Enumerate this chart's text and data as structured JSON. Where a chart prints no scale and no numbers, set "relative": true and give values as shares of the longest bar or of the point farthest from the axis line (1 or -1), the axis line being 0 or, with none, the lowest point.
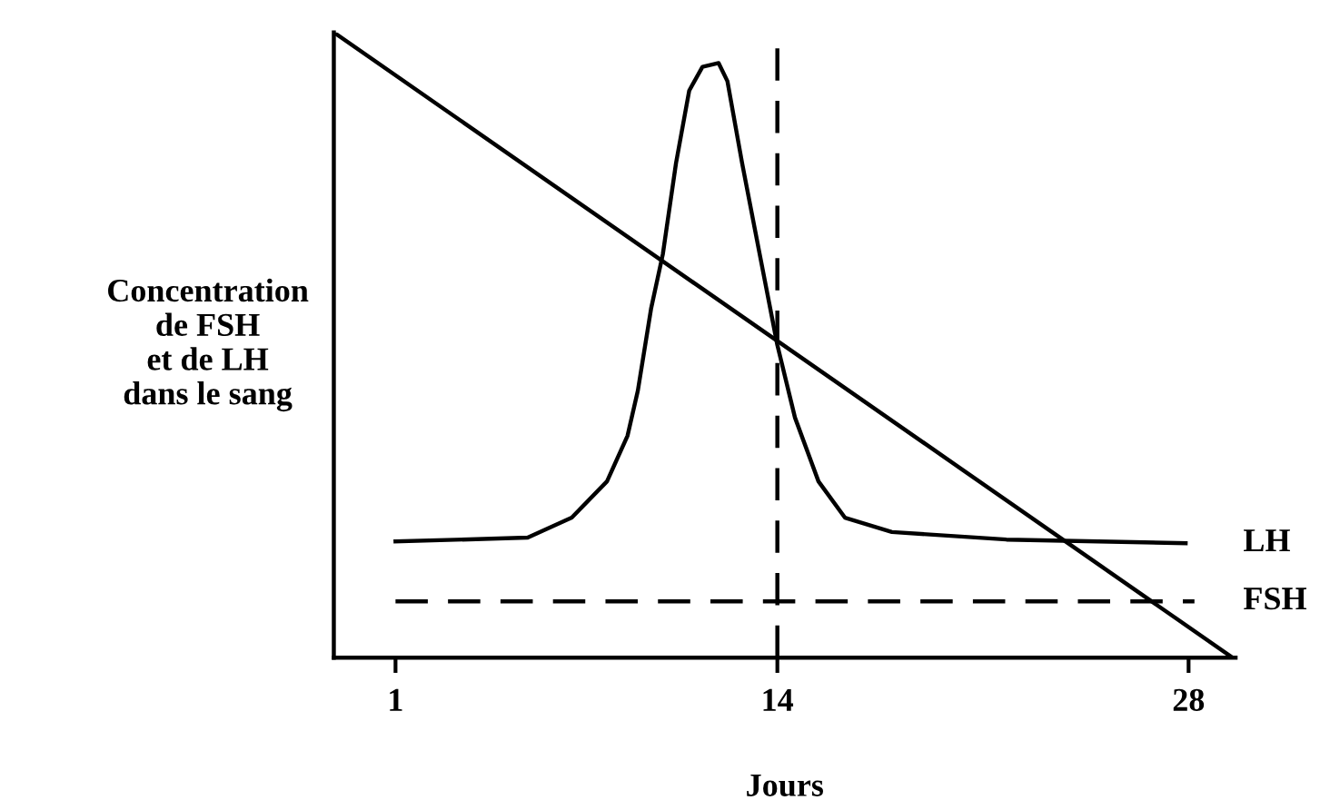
{
  "chart_data": {
    "type": "line",
    "relative": true,
    "xlabel": "Jours",
    "ylabel": "Concentration\nde FSH\net de LH\ndans le sang",
    "xlim": [
      -1.1,
      29.6
    ],
    "xticks": [
      1,
      14,
      28
    ],
    "grid": false,
    "legend": false,
    "marker": "none",
    "series": [
      {
        "name": "LH",
        "color": "#000000",
        "line_style": "solid",
        "x": [
          1,
          5.5,
          7.0,
          8.2,
          8.9,
          9.25,
          9.7,
          10.1,
          10.55,
          11.0,
          11.45,
          12.0,
          12.3,
          12.8,
          13.4,
          14.0,
          14.6,
          15.4,
          16.3,
          17.9,
          21.8,
          27.9
        ],
        "values": [
          0.186,
          0.192,
          0.224,
          0.282,
          0.355,
          0.427,
          0.558,
          0.645,
          0.791,
          0.907,
          0.945,
          0.951,
          0.922,
          0.791,
          0.645,
          0.5,
          0.384,
          0.282,
          0.224,
          0.201,
          0.189,
          0.183
        ]
      },
      {
        "name": "FSH",
        "color": "#000000",
        "line_style": "dashed",
        "x": [
          1,
          28.2
        ],
        "values": [
          0.09,
          0.09
        ]
      },
      {
        "color": "#000000",
        "line_style": "solid",
        "x": [
          -1.1,
          29.5
        ],
        "values": [
          1,
          0
        ]
      }
    ],
    "ref_lines": [
      {
        "axis": "x",
        "value": 14,
        "color": "#000000",
        "line_style": "dashed"
      }
    ]
  }
}
